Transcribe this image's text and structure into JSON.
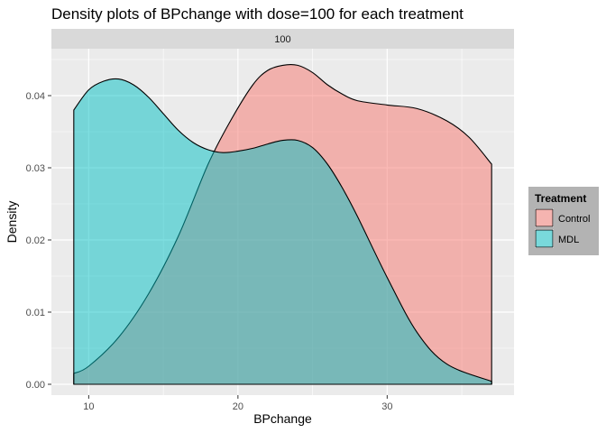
{
  "chart_data": {
    "type": "area",
    "title": "Density plots of BPchange with dose=100 for each treatment",
    "facet_label": "100",
    "xlabel": "BPchange",
    "ylabel": "Density",
    "xlim": [
      7.5,
      38.5
    ],
    "ylim": [
      -0.0015,
      0.0465
    ],
    "x_ticks": [
      10,
      20,
      30
    ],
    "x_minor_ticks": [
      15,
      25,
      35
    ],
    "y_ticks": [
      0.0,
      0.01,
      0.02,
      0.03,
      0.04
    ],
    "y_tick_labels": [
      "0.00",
      "0.01",
      "0.02",
      "0.03",
      "0.04"
    ],
    "y_minor_ticks": [
      0.005,
      0.015,
      0.025,
      0.035,
      0.045
    ],
    "grid": true,
    "legend": {
      "title": "Treatment",
      "placement": "right"
    },
    "series": [
      {
        "name": "Control",
        "color": "#F8766D",
        "x": [
          9,
          10,
          12,
          14,
          16,
          18,
          19.5,
          21,
          22,
          23,
          24,
          25,
          26,
          27,
          28,
          30,
          32,
          34,
          35.5,
          37
        ],
        "y": [
          0.0015,
          0.0025,
          0.0065,
          0.0125,
          0.0205,
          0.0305,
          0.0365,
          0.0415,
          0.0435,
          0.0442,
          0.0442,
          0.0432,
          0.0415,
          0.0402,
          0.0393,
          0.0387,
          0.0382,
          0.0365,
          0.0342,
          0.0305
        ]
      },
      {
        "name": "MDL",
        "color": "#00BFC4",
        "x": [
          9,
          10,
          11,
          12,
          13,
          14,
          15,
          16,
          17,
          18,
          19,
          20,
          21,
          22,
          23,
          24,
          25,
          26,
          27,
          28,
          30,
          32,
          34,
          37
        ],
        "y": [
          0.038,
          0.0408,
          0.042,
          0.0423,
          0.0415,
          0.0398,
          0.0375,
          0.0352,
          0.0335,
          0.0325,
          0.0321,
          0.0323,
          0.0327,
          0.0333,
          0.0338,
          0.0338,
          0.0328,
          0.0305,
          0.0272,
          0.0233,
          0.0148,
          0.0072,
          0.0028,
          0.0004
        ]
      }
    ]
  }
}
